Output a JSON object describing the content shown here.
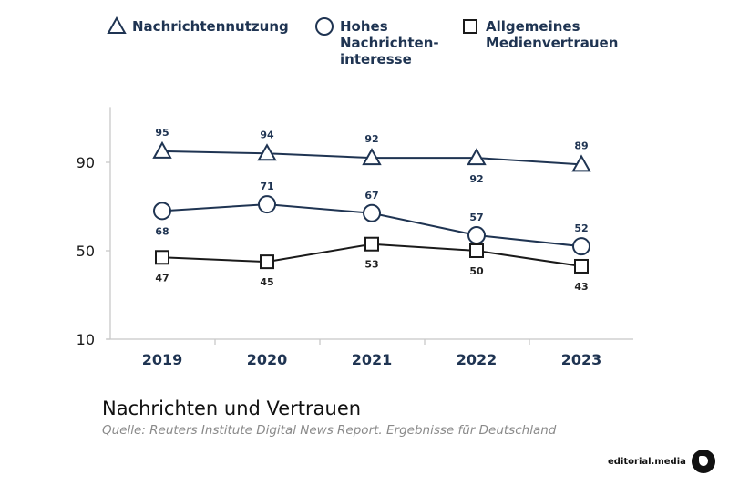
{
  "chart_data": {
    "type": "line",
    "title": "Nachrichten und Vertrauen",
    "subtitle": "Quelle: Reuters Institute Digital News Report. Ergebnisse für Deutschland",
    "xlabel": "",
    "ylabel": "",
    "categories": [
      "2019",
      "2020",
      "2021",
      "2022",
      "2023"
    ],
    "yticks": [
      10,
      50,
      90
    ],
    "ylim": [
      10,
      115
    ],
    "grid": false,
    "legend": "top",
    "series": [
      {
        "name": "Nachrichtennutzung",
        "marker": "triangle",
        "color": "#1f3452",
        "values": [
          95,
          94,
          92,
          92,
          89
        ],
        "label_pos": [
          "above",
          "above",
          "above",
          "below",
          "above"
        ]
      },
      {
        "name": "Hohes Nachrichten-interesse",
        "legend_lines": [
          "Hohes",
          "Nachrichten-",
          "interesse"
        ],
        "marker": "circle",
        "color": "#1f3452",
        "values": [
          68,
          71,
          67,
          57,
          52
        ],
        "label_pos": [
          "below",
          "above",
          "above",
          "above",
          "above"
        ]
      },
      {
        "name": "Allgemeines Medienvertrauen",
        "legend_lines": [
          "Allgemeines",
          "Medienvertrauen"
        ],
        "marker": "square",
        "color": "#1a1a1a",
        "values": [
          47,
          45,
          53,
          50,
          43
        ],
        "label_pos": [
          "below",
          "below",
          "below",
          "below",
          "below"
        ]
      }
    ]
  },
  "branding": {
    "name": "editorial.media"
  }
}
